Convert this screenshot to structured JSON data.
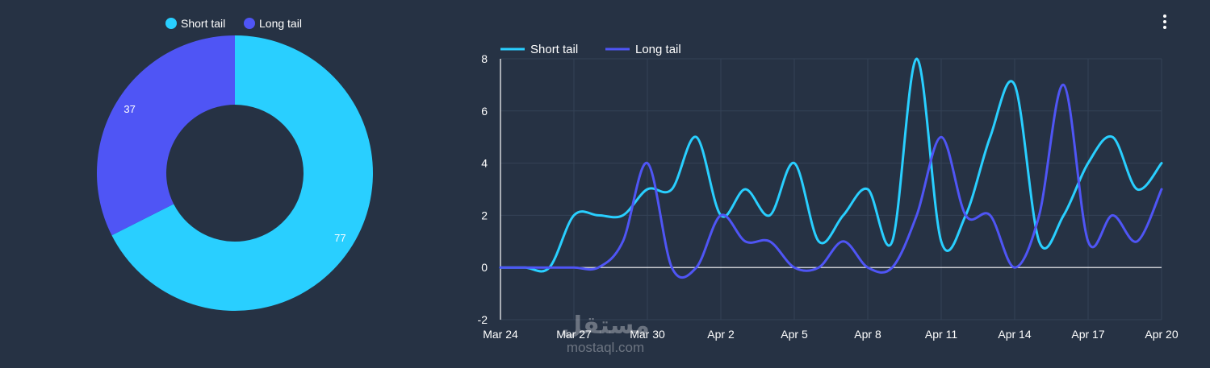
{
  "colors": {
    "background": "#263244",
    "short_tail": "#29cfff",
    "long_tail": "#4f55f5",
    "grid": "#344256",
    "axis": "#ffffff",
    "text": "#ffffff"
  },
  "toolbar": {
    "menu_icon": "more-vertical-icon"
  },
  "watermark": {
    "logo": "مستقل",
    "url": "mostaql.com"
  },
  "chart_data": [
    {
      "type": "pie",
      "donut": true,
      "legend_position": "top",
      "legend": [
        "Short tail",
        "Long tail"
      ],
      "slices": [
        {
          "name": "Short tail",
          "value": 77,
          "label": "77"
        },
        {
          "name": "Long tail",
          "value": 37,
          "label": "37"
        }
      ]
    },
    {
      "type": "line",
      "smooth": true,
      "legend_position": "top-left",
      "grid": true,
      "ylim": [
        -2,
        8
      ],
      "yticks": [
        "8",
        "6",
        "4",
        "2",
        "0",
        "-2"
      ],
      "xticks": [
        "Mar 24",
        "Mar 27",
        "Mar 30",
        "Apr 2",
        "Apr 5",
        "Apr 8",
        "Apr 11",
        "Apr 14",
        "Apr 17",
        "Apr 20"
      ],
      "x": [
        "Mar 24",
        "Mar 25",
        "Mar 26",
        "Mar 27",
        "Mar 28",
        "Mar 29",
        "Mar 30",
        "Mar 31",
        "Apr 1",
        "Apr 2",
        "Apr 3",
        "Apr 4",
        "Apr 5",
        "Apr 6",
        "Apr 7",
        "Apr 8",
        "Apr 9",
        "Apr 10",
        "Apr 11",
        "Apr 12",
        "Apr 13",
        "Apr 14",
        "Apr 15",
        "Apr 16",
        "Apr 17",
        "Apr 18",
        "Apr 19",
        "Apr 20"
      ],
      "series": [
        {
          "name": "Short tail",
          "values": [
            0,
            0,
            0,
            2,
            2,
            2,
            3,
            3,
            5,
            2,
            3,
            2,
            4,
            1,
            2,
            3,
            1,
            8,
            1,
            2,
            5,
            7,
            1,
            2,
            4,
            5,
            3,
            4
          ]
        },
        {
          "name": "Long tail",
          "values": [
            0,
            0,
            0,
            0,
            0,
            1,
            4,
            0,
            0,
            2,
            1,
            1,
            0,
            0,
            1,
            0,
            0,
            2,
            5,
            2,
            2,
            0,
            2,
            7,
            1,
            2,
            1,
            3
          ]
        }
      ]
    }
  ]
}
